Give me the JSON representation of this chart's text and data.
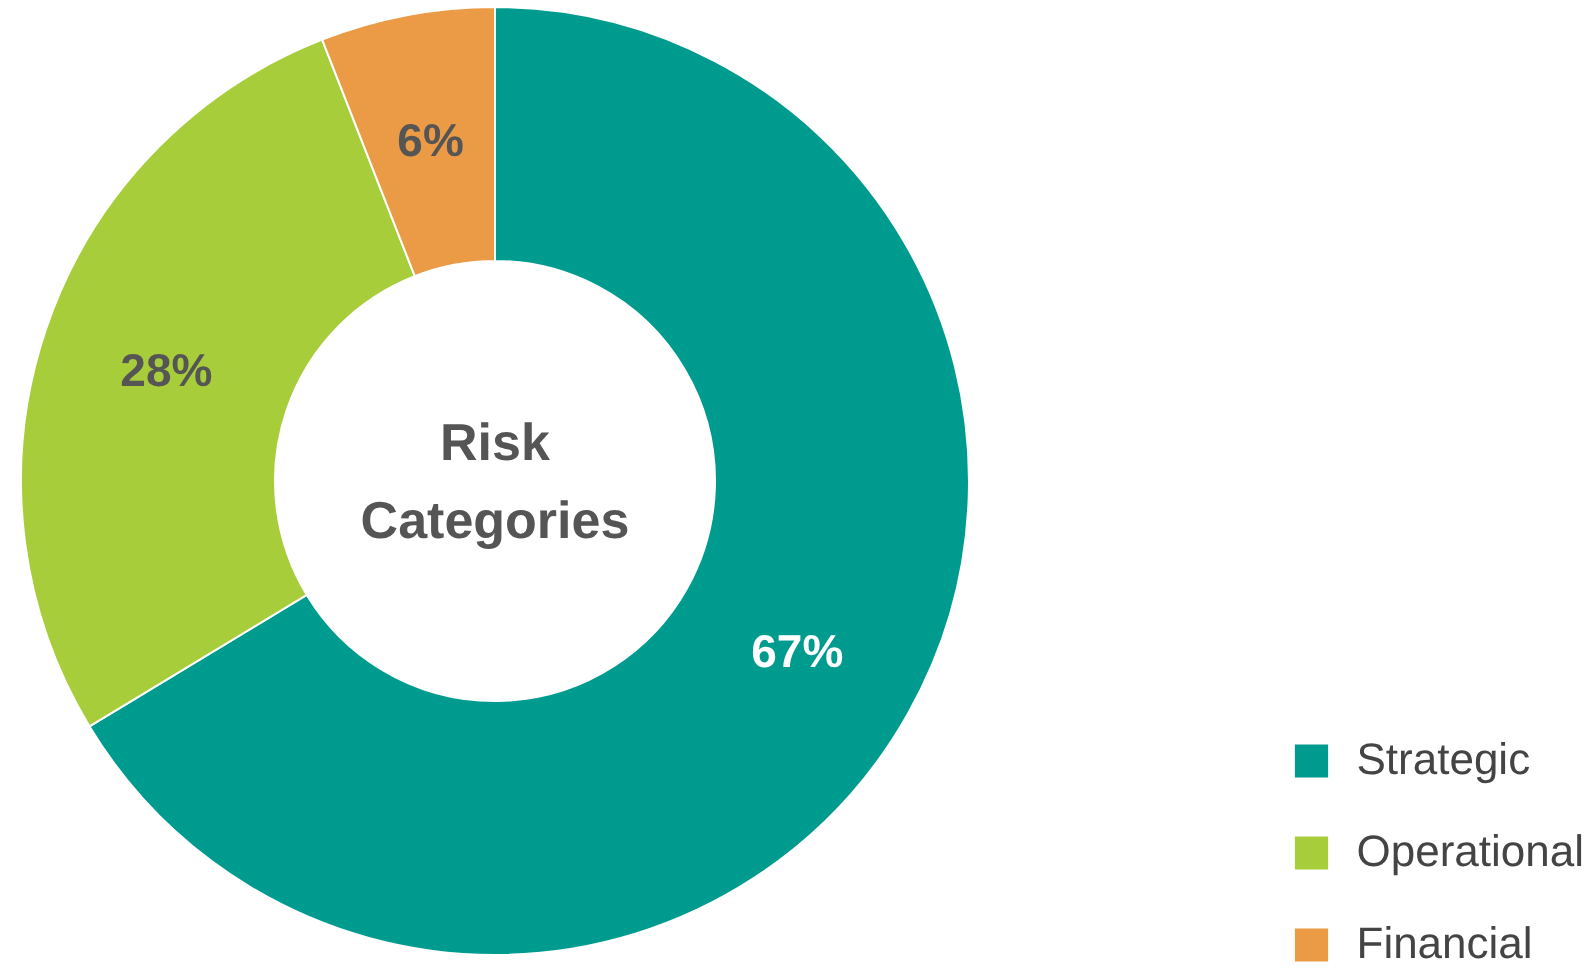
{
  "chart_data": {
    "type": "donut",
    "title": "Risk Categories",
    "categories": [
      "Strategic",
      "Operational",
      "Financial"
    ],
    "values": [
      67,
      28,
      6
    ],
    "value_labels": [
      "67%",
      "28%",
      "6%"
    ],
    "colors": [
      "#009b8f",
      "#a8cd3a",
      "#eb9a45"
    ],
    "legend": "bottom right"
  }
}
